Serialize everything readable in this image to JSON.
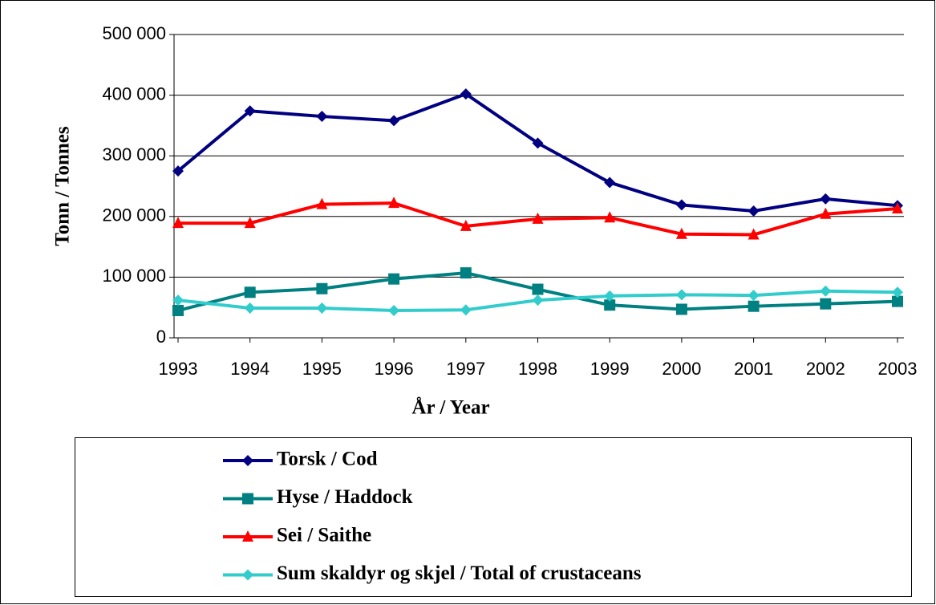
{
  "chart_data": {
    "type": "line",
    "x_label": "År / Year",
    "y_label": "Tonn / Tonnes",
    "categories": [
      "1993",
      "1994",
      "1995",
      "1996",
      "1997",
      "1998",
      "1999",
      "2000",
      "2001",
      "2002",
      "2003"
    ],
    "series": [
      {
        "name": "Torsk / Cod",
        "color": "#000080",
        "marker": "diamond",
        "values": [
          275000,
          374000,
          365000,
          358000,
          402000,
          321000,
          256000,
          219000,
          209000,
          229000,
          218000
        ]
      },
      {
        "name": "Hyse / Haddock",
        "color": "#008080",
        "marker": "square",
        "values": [
          45000,
          75000,
          81000,
          97000,
          107000,
          80000,
          54000,
          47000,
          52000,
          56000,
          60000
        ]
      },
      {
        "name": "Sei / Saithe",
        "color": "#ff0000",
        "marker": "triangle",
        "values": [
          189000,
          189000,
          220000,
          222000,
          184000,
          196000,
          198000,
          171000,
          170000,
          204000,
          213000
        ]
      },
      {
        "name": "Sum skaldyr og skjel / Total of crustaceans",
        "color": "#33cccc",
        "marker": "diamond",
        "values": [
          62000,
          49000,
          49000,
          45000,
          46000,
          62000,
          69000,
          71000,
          70000,
          77000,
          75000
        ]
      }
    ],
    "ylim": [
      0,
      500000
    ],
    "yticks": [
      0,
      {
        "value": 100000,
        "label": "100 000"
      },
      {
        "value": 200000,
        "label": "200 000"
      },
      {
        "value": 300000,
        "label": "300 000"
      },
      {
        "value": 400000,
        "label": "400 000"
      },
      {
        "value": 500000,
        "label": "500 000"
      }
    ],
    "grid": true,
    "legend": "bottom"
  }
}
